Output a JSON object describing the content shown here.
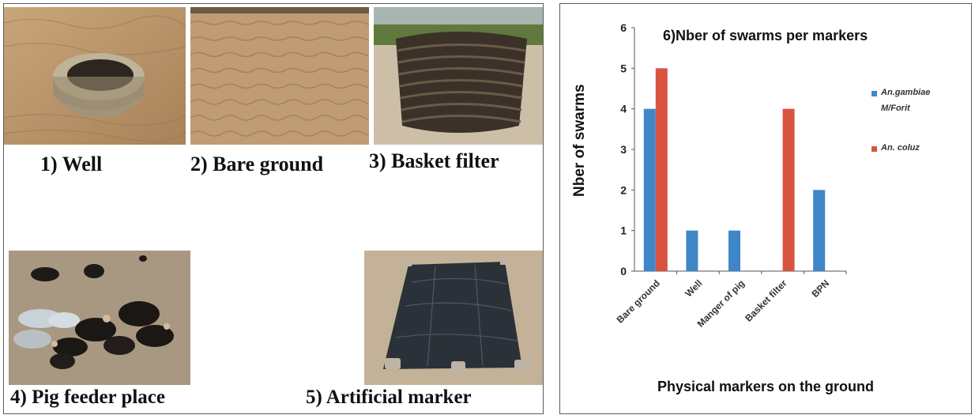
{
  "figure": {
    "captions": {
      "well": "1) Well",
      "bare_ground": "2) Bare ground",
      "basket_filter": "3) Basket filter",
      "pig_feeder": "4)  Pig feeder place",
      "artificial_marker": "5) Artificial marker"
    }
  },
  "chart_data": {
    "type": "bar",
    "title": "6)Nber of swarms per markers",
    "xlabel": "Physical markers on the ground",
    "ylabel": "Nber of swarms",
    "ylim": [
      0,
      6
    ],
    "yticks": [
      "0",
      "1",
      "2",
      "3",
      "4",
      "5",
      "6"
    ],
    "categories": [
      "Bare ground",
      "Well",
      "Manger of pig",
      "Basket filter",
      "BPN"
    ],
    "series": [
      {
        "name": "An.gambiae M/Forit",
        "color": "#3f86c9",
        "values": [
          4,
          1,
          1,
          0,
          2
        ]
      },
      {
        "name": "An. coluz",
        "color": "#d95341",
        "values": [
          5,
          0,
          0,
          4,
          0
        ]
      }
    ],
    "legend_position": "right",
    "grid": false
  },
  "legend": {
    "series1_line1": "An.gambiae",
    "series1_line2": "M/Forit",
    "series2": "An. coluz"
  }
}
